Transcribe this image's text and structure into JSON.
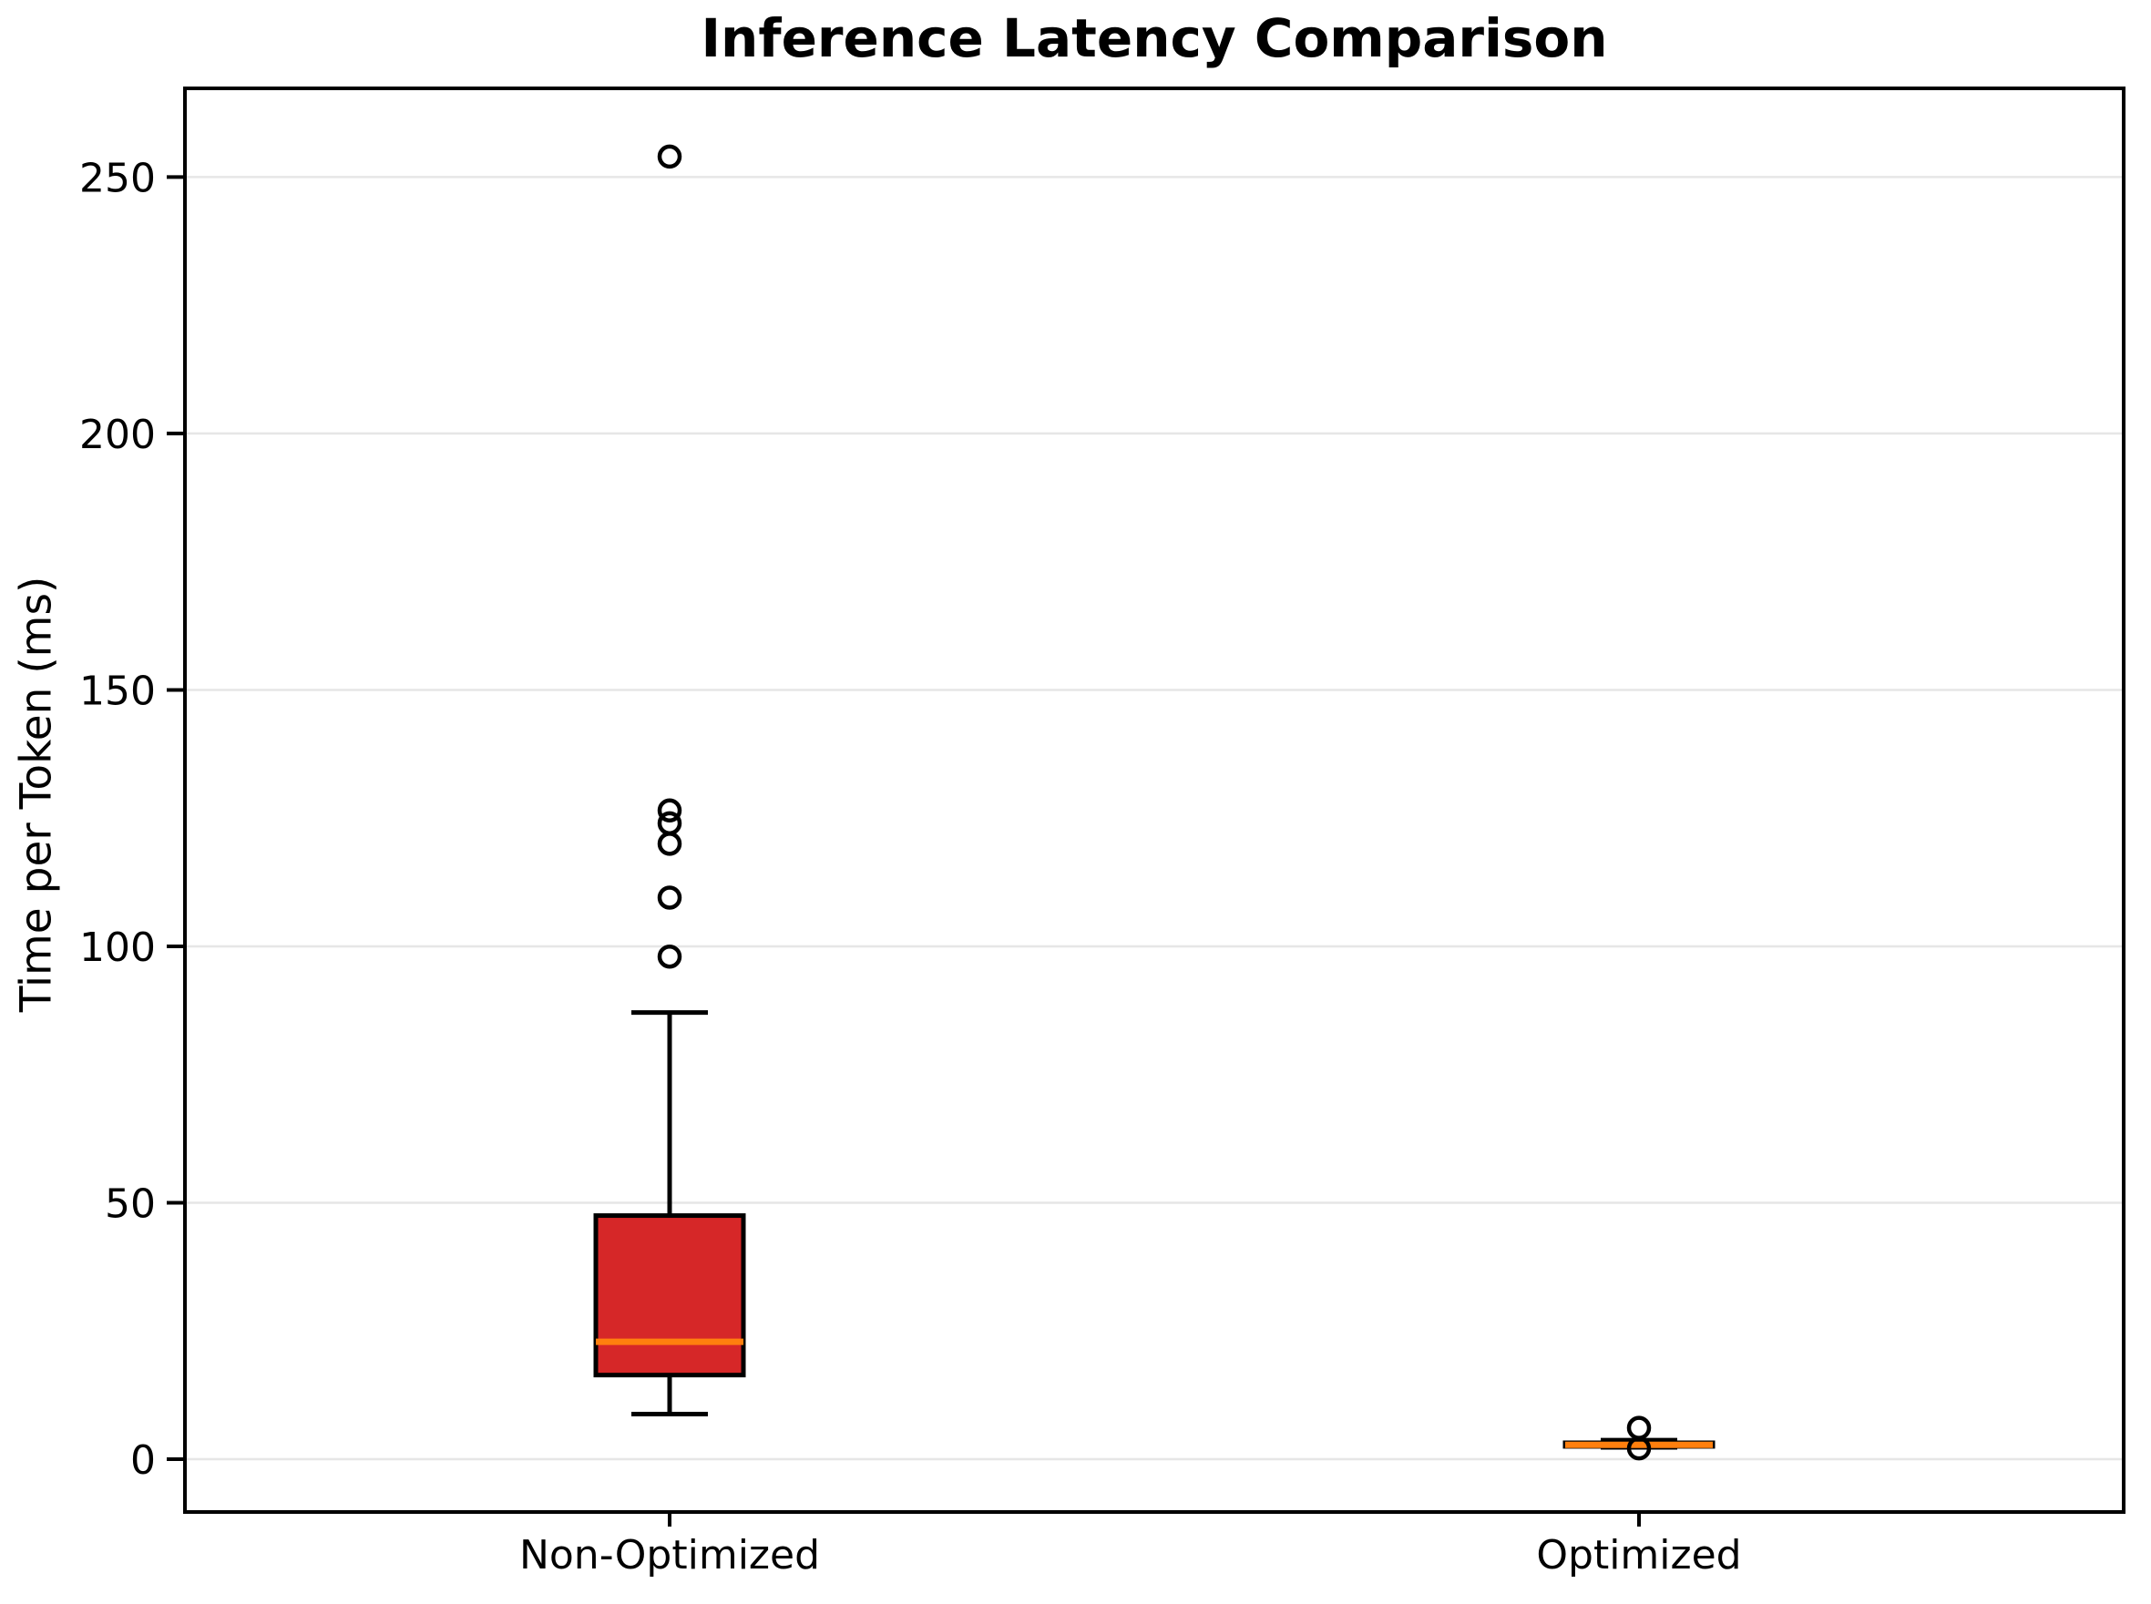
{
  "chart_data": {
    "type": "box",
    "title": "Inference Latency Comparison",
    "ylabel": "Time per Token (ms)",
    "categories": [
      "Non-Optimized",
      "Optimized"
    ],
    "ylim": [
      -10.3,
      267.3
    ],
    "yticks": [
      0,
      50,
      100,
      150,
      200,
      250
    ],
    "grid": "horizontal",
    "legend": "none",
    "median_color": "#ff7f0e",
    "colors": {
      "box_edge": "#000000",
      "grid": "#e6e6e6",
      "background": "#ffffff",
      "text": "#000000"
    },
    "series": [
      {
        "name": "Non-Optimized",
        "box_color": "#d62728",
        "whisker_low": 8.8,
        "q1": 16.4,
        "median": 22.9,
        "q3": 47.5,
        "whisker_high": 87.1,
        "outliers": [
          98,
          109.5,
          120,
          124,
          126.5,
          254
        ]
      },
      {
        "name": "Optimized",
        "box_color": "#d62728",
        "whisker_low": 2.3,
        "q1": 2.5,
        "median": 2.8,
        "q3": 3.2,
        "whisker_high": 3.7,
        "outliers": [
          6.1,
          2.1
        ]
      }
    ]
  }
}
